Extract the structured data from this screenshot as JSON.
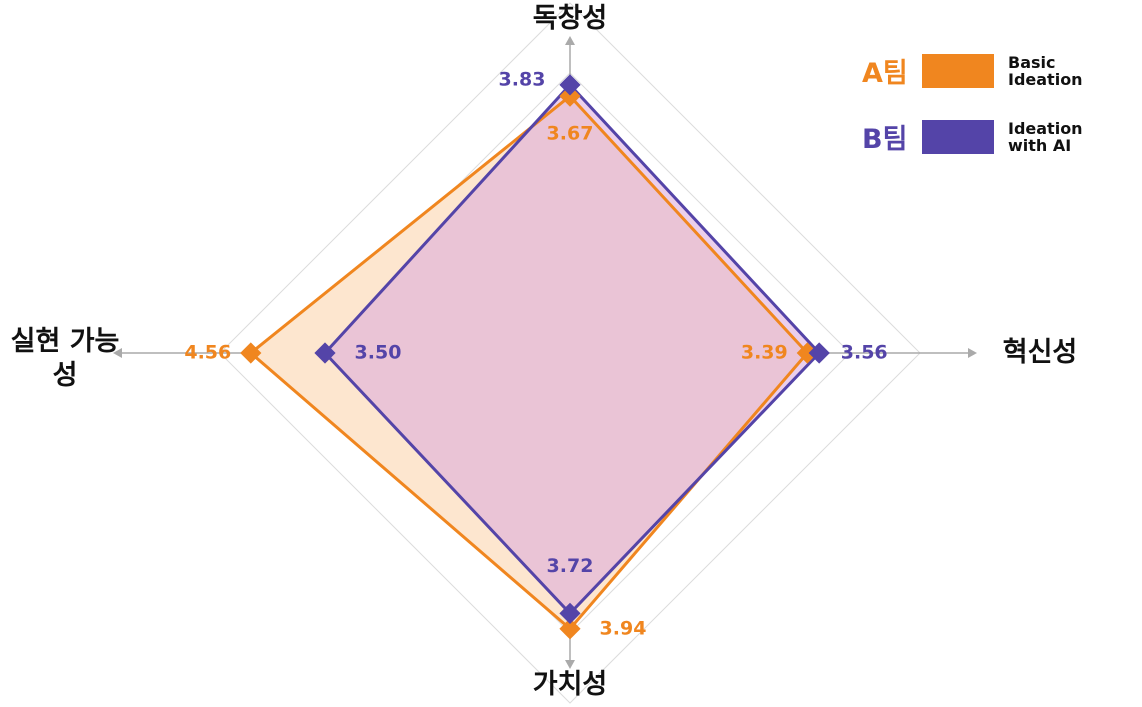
{
  "chart_data": {
    "type": "radar",
    "categories": [
      "독창성",
      "혁신성",
      "가치성",
      "실현 가능성"
    ],
    "rlim": [
      0,
      5
    ],
    "rticks": [
      1,
      2,
      3,
      4,
      5
    ],
    "grid": true,
    "legend": "top-right",
    "series": [
      {
        "name": "A팀",
        "description": "Basic Ideation",
        "color": "#f0861f",
        "fill": "#fde6cf",
        "values": [
          3.67,
          3.39,
          3.94,
          4.56
        ],
        "value_labels": [
          "3.67",
          "3.39",
          "3.94",
          "4.56"
        ]
      },
      {
        "name": "B팀",
        "description": "Ideation with AI",
        "color": "#5444a8",
        "fill": "#dba7dc",
        "values": [
          3.83,
          3.56,
          3.72,
          3.5
        ],
        "value_labels": [
          "3.83",
          "3.56",
          "3.72",
          "3.50"
        ]
      }
    ]
  }
}
